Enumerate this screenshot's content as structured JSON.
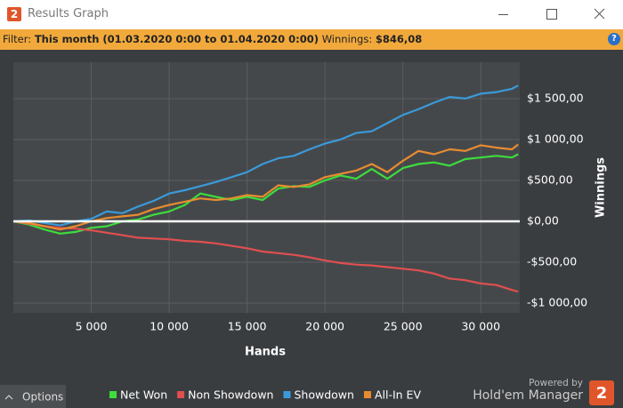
{
  "window": {
    "icon_text": "2",
    "title": "Results Graph"
  },
  "filter": {
    "label": "Filter:",
    "value": "This month (01.03.2020 0:00 to 01.04.2020 0:00)",
    "winnings_label": "Winnings:",
    "winnings_value": "$846,08",
    "help": "?"
  },
  "chart_data": {
    "type": "line",
    "xlabel": "Hands",
    "ylabel": "Winnings",
    "grid": true,
    "legend": "bottom",
    "x": [
      0,
      1000,
      2000,
      3000,
      4000,
      5000,
      6000,
      7000,
      8000,
      9000,
      10000,
      11000,
      12000,
      13000,
      14000,
      15000,
      16000,
      17000,
      18000,
      19000,
      20000,
      21000,
      22000,
      23000,
      24000,
      25000,
      26000,
      27000,
      28000,
      29000,
      30000,
      31000,
      32000,
      32400
    ],
    "series": [
      {
        "name": "Net Won",
        "color": "#3ddc3d",
        "values": [
          0,
          -40,
          -100,
          -150,
          -130,
          -80,
          -60,
          0,
          20,
          80,
          120,
          200,
          340,
          300,
          260,
          300,
          260,
          400,
          430,
          420,
          500,
          560,
          520,
          640,
          520,
          650,
          700,
          720,
          680,
          760,
          780,
          800,
          780,
          820
        ]
      },
      {
        "name": "Non Showdown",
        "color": "#e04f4f",
        "values": [
          0,
          -30,
          -60,
          -80,
          -90,
          -110,
          -140,
          -170,
          -200,
          -210,
          -220,
          -240,
          -250,
          -270,
          -300,
          -330,
          -370,
          -390,
          -410,
          -440,
          -480,
          -510,
          -530,
          -540,
          -560,
          -580,
          -600,
          -640,
          -700,
          -720,
          -760,
          -780,
          -840,
          -860
        ]
      },
      {
        "name": "Showdown",
        "color": "#3a9ad9",
        "values": [
          0,
          10,
          -20,
          -50,
          0,
          30,
          120,
          100,
          180,
          250,
          340,
          380,
          430,
          480,
          540,
          600,
          700,
          770,
          800,
          880,
          950,
          1000,
          1080,
          1100,
          1200,
          1300,
          1370,
          1450,
          1520,
          1500,
          1560,
          1580,
          1620,
          1660
        ]
      },
      {
        "name": "All-In EV",
        "color": "#e88c30",
        "values": [
          0,
          -20,
          -60,
          -100,
          -60,
          0,
          40,
          60,
          80,
          150,
          200,
          240,
          280,
          260,
          280,
          320,
          300,
          440,
          420,
          450,
          540,
          580,
          620,
          700,
          600,
          740,
          860,
          820,
          880,
          860,
          930,
          900,
          880,
          940
        ]
      }
    ],
    "xlim": [
      0,
      32500
    ],
    "xticks": [
      {
        "value": 5000,
        "label": "5 000"
      },
      {
        "value": 10000,
        "label": "10 000"
      },
      {
        "value": 15000,
        "label": "15 000"
      },
      {
        "value": 20000,
        "label": "20 000"
      },
      {
        "value": 25000,
        "label": "25 000"
      },
      {
        "value": 30000,
        "label": "30 000"
      }
    ],
    "ylim": [
      -1120,
      1945
    ],
    "yticks": [
      {
        "value": -1000,
        "label": "-$1 000,00"
      },
      {
        "value": -500,
        "label": "-$500,00"
      },
      {
        "value": 0,
        "label": "$0,00"
      },
      {
        "value": 500,
        "label": "$500,00"
      },
      {
        "value": 1000,
        "label": "$1 000,00"
      },
      {
        "value": 1500,
        "label": "$1 500,00"
      }
    ]
  },
  "footer": {
    "options": "Options",
    "powered_by": "Powered by",
    "brand": "Hold'em Manager",
    "brand_icon": "2"
  }
}
